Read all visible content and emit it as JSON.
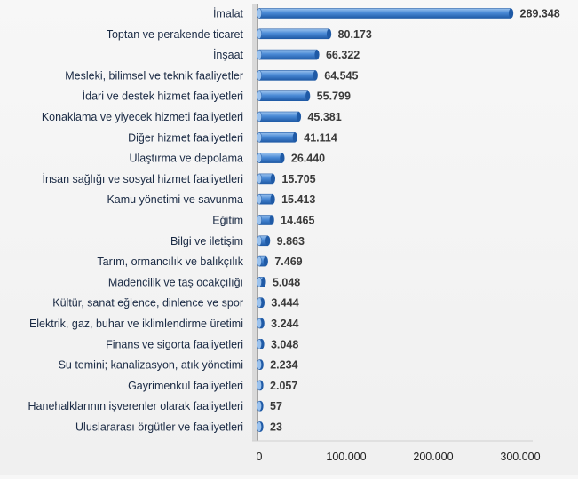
{
  "chart_data": {
    "type": "bar",
    "orientation": "horizontal",
    "categories": [
      "İmalat",
      "Toptan ve perakende ticaret",
      "İnşaat",
      "Mesleki, bilimsel ve teknik faaliyetler",
      "İdari ve destek hizmet faaliyetleri",
      "Konaklama ve yiyecek hizmeti faaliyetleri",
      "Diğer hizmet faaliyetleri",
      "Ulaştırma ve depolama",
      "İnsan sağlığı ve sosyal hizmet faaliyetleri",
      "Kamu yönetimi ve savunma",
      "Eğitim",
      "Bilgi ve iletişim",
      "Tarım, ormancılık ve balıkçılık",
      "Madencilik ve taş ocakçılığı",
      "Kültür, sanat eğlence, dinlence ve spor",
      "Elektrik, gaz, buhar ve iklimlendirme üretimi",
      "Finans ve sigorta faaliyetleri",
      "Su temini; kanalizasyon, atık yönetimi",
      "Gayrimenkul faaliyetleri",
      "Hanehalklarının işverenler olarak faaliyetleri",
      "Uluslararası örgütler ve faaliyetleri"
    ],
    "values": [
      289348,
      80173,
      66322,
      64545,
      55799,
      45381,
      41114,
      26440,
      15705,
      15413,
      14465,
      9863,
      7469,
      5048,
      3444,
      3244,
      3048,
      2234,
      2057,
      57,
      23
    ],
    "value_labels": [
      "289.348",
      "80.173",
      "66.322",
      "64.545",
      "55.799",
      "45.381",
      "41.114",
      "26.440",
      "15.705",
      "15.413",
      "14.465",
      "9.863",
      "7.469",
      "5.048",
      "3.444",
      "3.244",
      "3.048",
      "2.234",
      "2.057",
      "57",
      "23"
    ],
    "xlim": [
      0,
      300000
    ],
    "x_ticks": [
      0,
      100000,
      200000,
      300000
    ],
    "x_tick_labels": [
      "0",
      "100.000",
      "200.000",
      "300.000"
    ],
    "title": "",
    "xlabel": "",
    "ylabel": "",
    "grid": false,
    "legend": "none",
    "colors": {
      "bar_light": "#9cc3ee",
      "bar_mid": "#4a8ad6",
      "bar_dark": "#1f5aa6",
      "label_text": "#1a2a44",
      "value_text": "#3a3a3a",
      "axis": "#8a8a8a"
    }
  }
}
